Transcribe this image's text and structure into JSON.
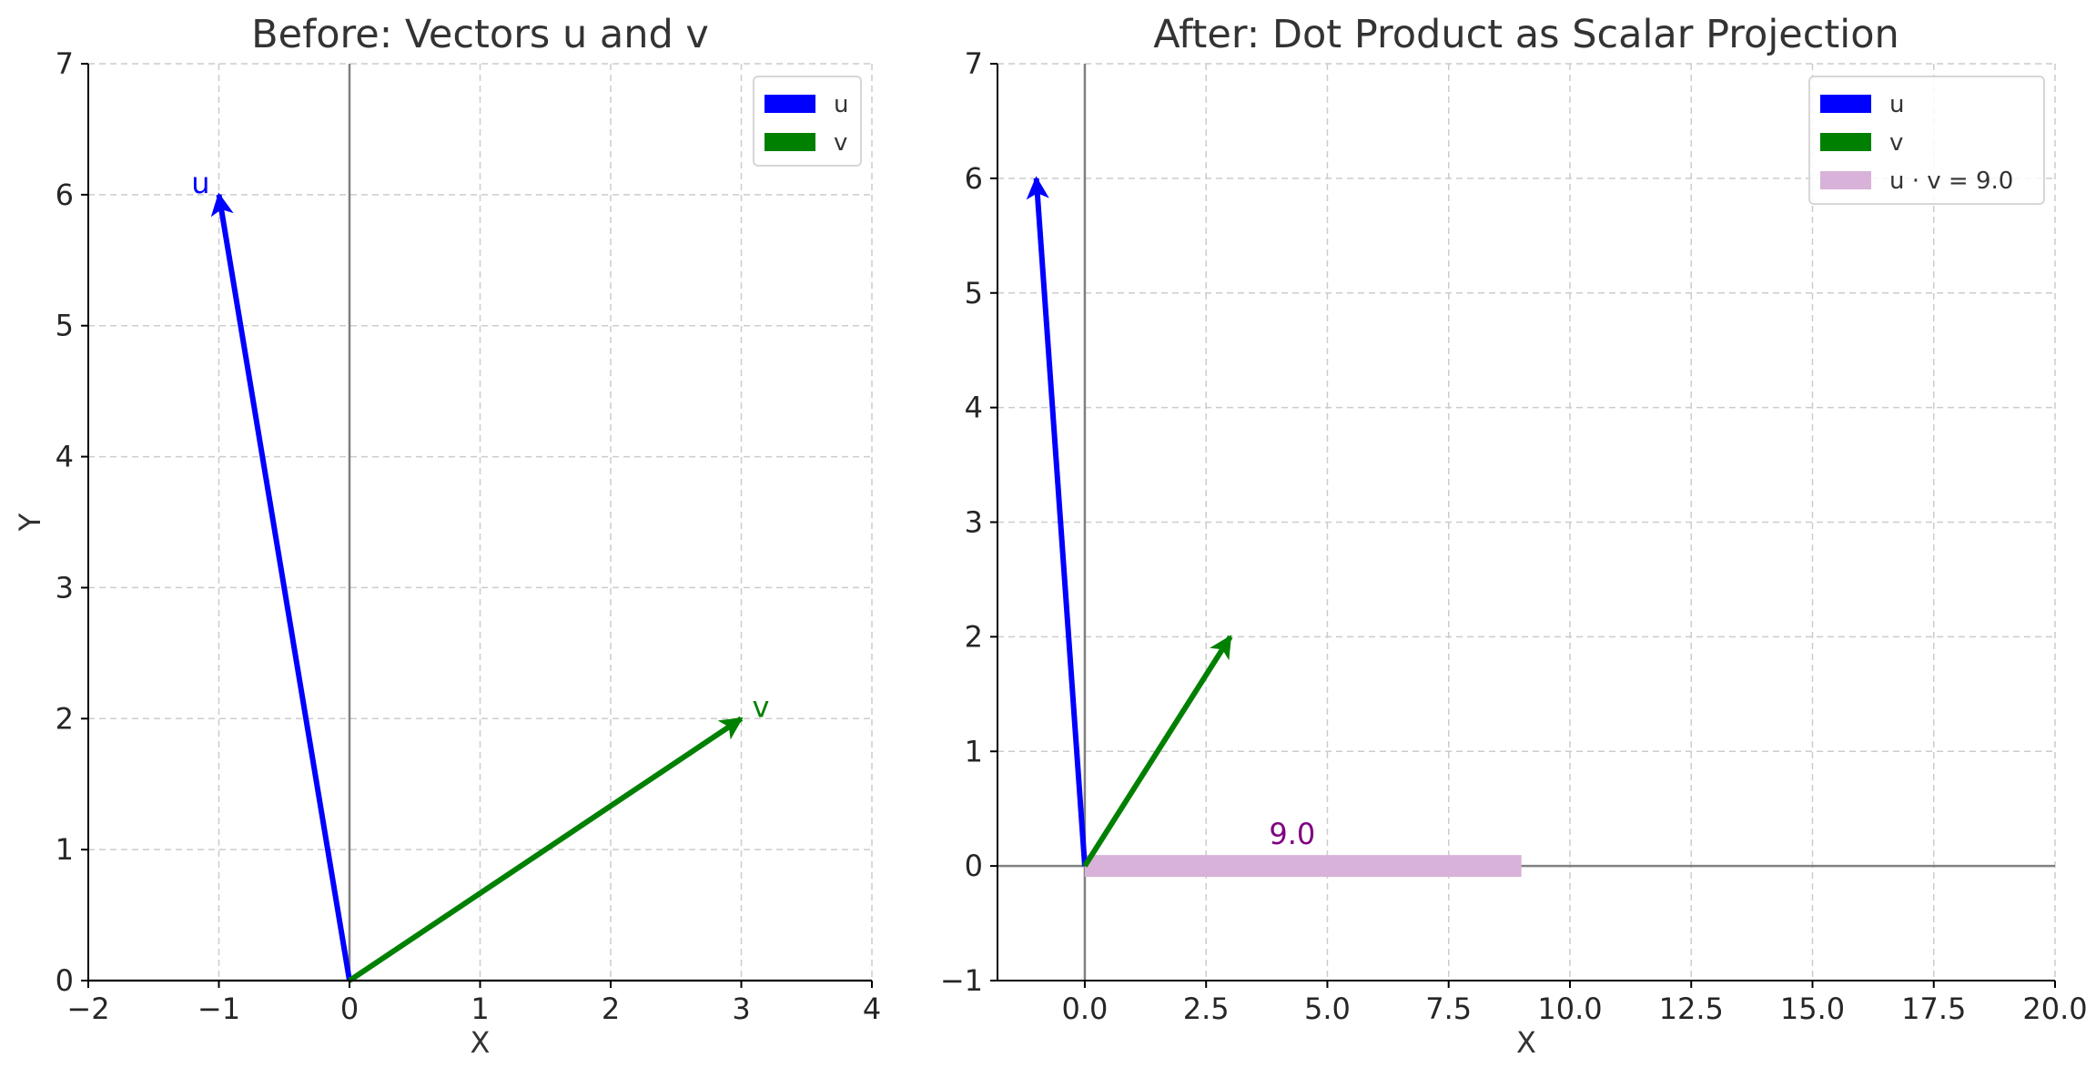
{
  "chart_data": [
    {
      "type": "vector",
      "title": "Before: Vectors u and v",
      "xlabel": "X",
      "ylabel": "Y",
      "xlim": [
        -2,
        4
      ],
      "ylim": [
        0,
        7
      ],
      "xticks": [
        -2,
        -1,
        0,
        1,
        2,
        3,
        4
      ],
      "xtick_labels": [
        "−2",
        "−1",
        "0",
        "1",
        "2",
        "3",
        "4"
      ],
      "yticks": [
        0,
        1,
        2,
        3,
        4,
        5,
        6,
        7
      ],
      "ytick_labels": [
        "0",
        "1",
        "2",
        "3",
        "4",
        "5",
        "6",
        "7"
      ],
      "grid": true,
      "legend_position": "top-right",
      "vectors": [
        {
          "name": "u",
          "origin": [
            0,
            0
          ],
          "components": [
            -1,
            6
          ],
          "color": "#0000ff",
          "label": "u"
        },
        {
          "name": "v",
          "origin": [
            0,
            0
          ],
          "components": [
            3,
            2
          ],
          "color": "#008000",
          "label": "v"
        }
      ],
      "legend": [
        {
          "label": "u",
          "color": "#0000ff"
        },
        {
          "label": "v",
          "color": "#008000"
        }
      ]
    },
    {
      "type": "vector",
      "title": "After: Dot Product as Scalar Projection",
      "xlabel": "X",
      "ylabel": "",
      "xlim": [
        -1.8,
        20
      ],
      "ylim": [
        -1,
        7
      ],
      "xticks": [
        0,
        2.5,
        5,
        7.5,
        10,
        12.5,
        15,
        17.5,
        20
      ],
      "xtick_labels": [
        "0.0",
        "2.5",
        "5.0",
        "7.5",
        "10.0",
        "12.5",
        "15.0",
        "17.5",
        "20.0"
      ],
      "yticks": [
        -1,
        0,
        1,
        2,
        3,
        4,
        5,
        6,
        7
      ],
      "ytick_labels": [
        "−1",
        "0",
        "1",
        "2",
        "3",
        "4",
        "5",
        "6",
        "7"
      ],
      "grid": true,
      "legend_position": "top-right",
      "vectors": [
        {
          "name": "u",
          "origin": [
            0,
            0
          ],
          "components": [
            -1,
            6
          ],
          "color": "#0000ff"
        },
        {
          "name": "v",
          "origin": [
            0,
            0
          ],
          "components": [
            3,
            2
          ],
          "color": "#008000"
        }
      ],
      "projection_bar": {
        "from": 0,
        "to": 9.0,
        "y": 0,
        "color": "#d8b2d8",
        "label": "9.0",
        "label_color": "#800080"
      },
      "legend": [
        {
          "label": "u",
          "color": "#0000ff"
        },
        {
          "label": "v",
          "color": "#008000"
        },
        {
          "label": "u · v = 9.0",
          "color": "#d8b2d8"
        }
      ]
    }
  ]
}
